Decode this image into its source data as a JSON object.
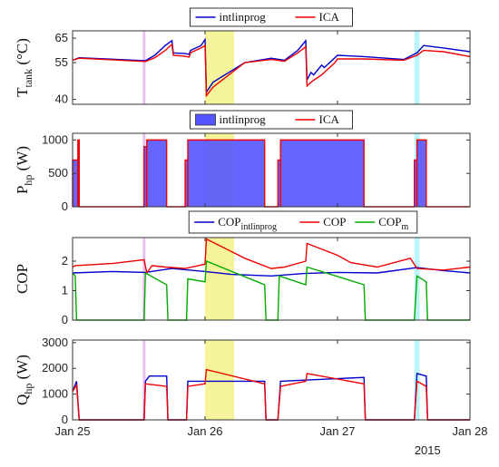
{
  "chart_data": [
    {
      "type": "line",
      "ylabel_main": "T",
      "ylabel_sub": "tank",
      "ylabel_unit": " (°C)",
      "ylim": [
        38,
        68
      ],
      "yticks": [
        40,
        55,
        65
      ],
      "legend": {
        "placement": "top-center",
        "entries": [
          "intlinprog",
          "ICA"
        ]
      },
      "series": [
        {
          "name": "intlinprog",
          "color": "#0000cc",
          "points": [
            [
              25.0,
              56
            ],
            [
              25.05,
              57
            ],
            [
              25.55,
              55.8
            ],
            [
              25.62,
              58
            ],
            [
              25.7,
              62
            ],
            [
              25.75,
              64
            ],
            [
              25.76,
              59
            ],
            [
              25.85,
              58.7
            ],
            [
              25.88,
              58.4
            ],
            [
              25.89,
              60
            ],
            [
              25.97,
              62
            ],
            [
              26.0,
              64.5
            ],
            [
              26.01,
              43
            ],
            [
              26.06,
              47
            ],
            [
              26.3,
              55
            ],
            [
              26.5,
              56.8
            ],
            [
              26.6,
              56
            ],
            [
              26.7,
              60
            ],
            [
              26.76,
              64
            ],
            [
              26.77,
              48
            ],
            [
              26.8,
              51
            ],
            [
              26.82,
              50
            ],
            [
              26.88,
              54
            ],
            [
              26.9,
              53
            ],
            [
              26.98,
              57
            ],
            [
              27.0,
              58
            ],
            [
              27.2,
              57.5
            ],
            [
              27.5,
              56.3
            ],
            [
              27.6,
              59
            ],
            [
              27.65,
              62
            ],
            [
              27.8,
              61
            ],
            [
              28.0,
              59.5
            ]
          ]
        },
        {
          "name": "ICA",
          "color": "#ee0000",
          "points": [
            [
              25.0,
              56
            ],
            [
              25.05,
              56.8
            ],
            [
              25.55,
              55.5
            ],
            [
              25.62,
              57
            ],
            [
              25.7,
              60
            ],
            [
              25.75,
              62.5
            ],
            [
              25.76,
              58
            ],
            [
              25.85,
              57.6
            ],
            [
              25.88,
              57.3
            ],
            [
              25.89,
              59
            ],
            [
              25.97,
              61
            ],
            [
              26.0,
              62
            ],
            [
              26.01,
              41.5
            ],
            [
              26.06,
              45
            ],
            [
              26.3,
              55
            ],
            [
              26.5,
              56.3
            ],
            [
              26.6,
              55.6
            ],
            [
              26.7,
              59
            ],
            [
              26.76,
              61.5
            ],
            [
              26.77,
              45.5
            ],
            [
              26.8,
              47
            ],
            [
              26.82,
              47.8
            ],
            [
              26.88,
              50
            ],
            [
              26.9,
              51
            ],
            [
              26.98,
              55
            ],
            [
              27.0,
              56.5
            ],
            [
              27.2,
              56.5
            ],
            [
              27.5,
              56
            ],
            [
              27.6,
              58
            ],
            [
              27.65,
              60
            ],
            [
              27.8,
              59.5
            ],
            [
              28.0,
              57.5
            ]
          ]
        }
      ]
    },
    {
      "type": "area",
      "ylabel_main": "P",
      "ylabel_sub": "hp",
      "ylabel_unit": " (W)",
      "ylim": [
        0,
        1100
      ],
      "yticks": [
        0,
        500,
        1000
      ],
      "legend": {
        "placement": "top-center",
        "entries": [
          "intlinprog",
          "ICA"
        ]
      },
      "series": [
        {
          "name": "intlinprog",
          "color": "#5555ff",
          "on_intervals": [
            [
              25.0,
              25.04,
              700
            ],
            [
              25.04,
              25.05,
              1000
            ],
            [
              25.54,
              25.56,
              900
            ],
            [
              25.56,
              25.71,
              1000
            ],
            [
              25.85,
              25.87,
              700
            ],
            [
              25.87,
              26.45,
              1000
            ],
            [
              26.55,
              26.57,
              700
            ],
            [
              26.57,
              27.2,
              1000
            ],
            [
              27.58,
              27.6,
              700
            ],
            [
              27.6,
              27.67,
              1000
            ]
          ]
        },
        {
          "name": "ICA",
          "color": "#ee0000",
          "on_intervals": [
            [
              25.0,
              25.04,
              700
            ],
            [
              25.04,
              25.05,
              1000
            ],
            [
              25.54,
              25.56,
              900
            ],
            [
              25.56,
              25.71,
              1000
            ],
            [
              25.85,
              25.87,
              700
            ],
            [
              25.87,
              26.45,
              1000
            ],
            [
              26.55,
              26.57,
              700
            ],
            [
              26.57,
              27.2,
              1000
            ],
            [
              27.58,
              27.6,
              700
            ],
            [
              27.6,
              27.67,
              1000
            ]
          ]
        }
      ]
    },
    {
      "type": "line",
      "ylabel_main": "COP",
      "ylabel_sub": "",
      "ylabel_unit": "",
      "ylim": [
        0,
        2.8
      ],
      "yticks": [
        0,
        1,
        2
      ],
      "legend": {
        "placement": "top-center",
        "entries": [
          "COP",
          "COP",
          "COP"
        ],
        "subs": [
          "intlinprog",
          "",
          "m"
        ]
      },
      "series": [
        {
          "name": "COP_intlinprog",
          "color": "#0000cc",
          "points": [
            [
              25.0,
              1.6
            ],
            [
              25.3,
              1.65
            ],
            [
              25.55,
              1.62
            ],
            [
              25.75,
              1.75
            ],
            [
              26.0,
              1.65
            ],
            [
              26.2,
              1.55
            ],
            [
              26.5,
              1.5
            ],
            [
              26.75,
              1.58
            ],
            [
              27.0,
              1.62
            ],
            [
              27.3,
              1.6
            ],
            [
              27.6,
              1.78
            ],
            [
              27.8,
              1.68
            ],
            [
              28.0,
              1.6
            ]
          ]
        },
        {
          "name": "COP",
          "color": "#ee0000",
          "points": [
            [
              25.0,
              1.8
            ],
            [
              25.02,
              1.85
            ],
            [
              25.3,
              1.92
            ],
            [
              25.54,
              2.05
            ],
            [
              25.56,
              1.6
            ],
            [
              25.6,
              1.85
            ],
            [
              25.7,
              1.8
            ],
            [
              25.85,
              1.75
            ],
            [
              26.0,
              1.9
            ],
            [
              26.01,
              2.75
            ],
            [
              26.3,
              2.1
            ],
            [
              26.5,
              1.75
            ],
            [
              26.6,
              1.8
            ],
            [
              26.76,
              2.0
            ],
            [
              26.77,
              2.6
            ],
            [
              27.0,
              2.2
            ],
            [
              27.1,
              1.95
            ],
            [
              27.3,
              1.8
            ],
            [
              27.55,
              2.1
            ],
            [
              27.6,
              1.75
            ],
            [
              27.8,
              1.7
            ],
            [
              28.0,
              1.8
            ]
          ]
        },
        {
          "name": "COP_m",
          "color": "#00aa00",
          "points": [
            [
              25.0,
              1.6
            ],
            [
              25.02,
              1.5
            ],
            [
              25.03,
              0
            ],
            [
              25.54,
              0
            ],
            [
              25.55,
              1.6
            ],
            [
              25.71,
              1.2
            ],
            [
              25.72,
              0
            ],
            [
              25.86,
              0
            ],
            [
              25.87,
              1.4
            ],
            [
              26.0,
              1.3
            ],
            [
              26.01,
              2.0
            ],
            [
              26.45,
              1.2
            ],
            [
              26.46,
              0
            ],
            [
              26.55,
              0
            ],
            [
              26.56,
              1.5
            ],
            [
              26.76,
              1.2
            ],
            [
              26.77,
              1.8
            ],
            [
              27.2,
              1.2
            ],
            [
              27.21,
              0
            ],
            [
              27.58,
              0
            ],
            [
              27.6,
              1.5
            ],
            [
              27.67,
              1.3
            ],
            [
              27.68,
              0
            ],
            [
              28.0,
              0
            ]
          ]
        }
      ]
    },
    {
      "type": "line",
      "ylabel_main": "Q",
      "ylabel_sub": "hp",
      "ylabel_unit": " (W)",
      "ylim": [
        0,
        3100
      ],
      "yticks": [
        0,
        1000,
        2000,
        3000
      ],
      "xticks": [
        "Jan 25",
        "Jan 26",
        "Jan 27",
        "Jan 28"
      ],
      "xtick_values": [
        25,
        26,
        27,
        28
      ],
      "year_label": "2015",
      "series": [
        {
          "name": "intlinprog",
          "color": "#0000cc",
          "points": [
            [
              25.0,
              1100
            ],
            [
              25.03,
              1500
            ],
            [
              25.05,
              0
            ],
            [
              25.54,
              0
            ],
            [
              25.55,
              1500
            ],
            [
              25.58,
              1700
            ],
            [
              25.71,
              1700
            ],
            [
              25.72,
              0
            ],
            [
              25.86,
              0
            ],
            [
              25.87,
              1500
            ],
            [
              26.45,
              1500
            ],
            [
              26.46,
              0
            ],
            [
              26.55,
              0
            ],
            [
              26.57,
              1500
            ],
            [
              27.2,
              1650
            ],
            [
              27.21,
              0
            ],
            [
              27.58,
              0
            ],
            [
              27.6,
              1800
            ],
            [
              27.67,
              1700
            ],
            [
              27.68,
              0
            ],
            [
              28.0,
              0
            ]
          ]
        },
        {
          "name": "ICA",
          "color": "#ee0000",
          "points": [
            [
              25.0,
              1100
            ],
            [
              25.03,
              1350
            ],
            [
              25.05,
              0
            ],
            [
              25.54,
              0
            ],
            [
              25.55,
              1400
            ],
            [
              25.71,
              1300
            ],
            [
              25.72,
              0
            ],
            [
              25.86,
              0
            ],
            [
              25.87,
              1300
            ],
            [
              26.0,
              1400
            ],
            [
              26.01,
              1950
            ],
            [
              26.45,
              1400
            ],
            [
              26.46,
              0
            ],
            [
              26.55,
              0
            ],
            [
              26.57,
              1300
            ],
            [
              26.76,
              1500
            ],
            [
              26.77,
              1800
            ],
            [
              27.2,
              1400
            ],
            [
              27.21,
              0
            ],
            [
              27.58,
              0
            ],
            [
              27.6,
              1500
            ],
            [
              27.67,
              1300
            ],
            [
              27.68,
              0
            ],
            [
              28.0,
              0
            ]
          ]
        }
      ]
    }
  ],
  "highlights": [
    {
      "from": 25.53,
      "to": 25.55,
      "color": "#e6b3ee"
    },
    {
      "from": 26.0,
      "to": 26.22,
      "color": "#f5f28a"
    },
    {
      "from": 27.58,
      "to": 27.62,
      "color": "#aef3f8"
    }
  ]
}
